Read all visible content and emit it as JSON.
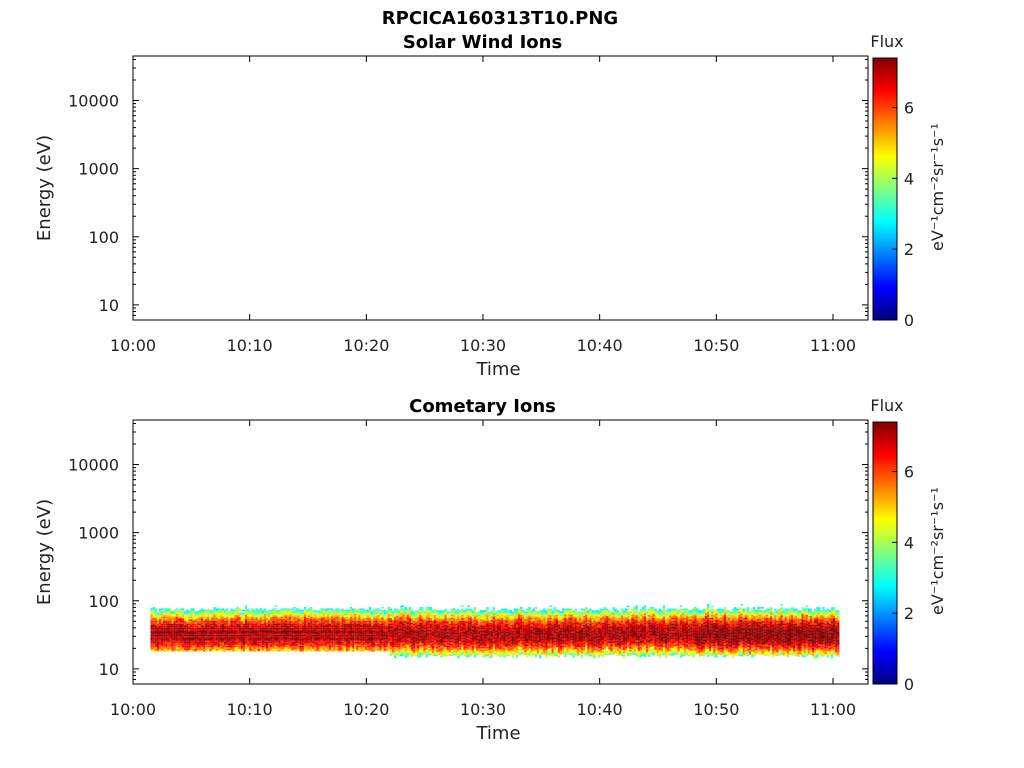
{
  "figure": {
    "title": "RPCICA160313T10.PNG"
  },
  "colormap": [
    "#00007f",
    "#0000ff",
    "#007fff",
    "#00ffff",
    "#7fff7f",
    "#ffff00",
    "#ff7f00",
    "#ff0000",
    "#7f0000"
  ],
  "chart_data": [
    {
      "type": "heatmap",
      "title": "Solar Wind Ions",
      "xlabel": "Time",
      "ylabel": "Energy (eV)",
      "x_ticks": [
        "10:00",
        "10:10",
        "10:20",
        "10:30",
        "10:40",
        "10:50",
        "11:00"
      ],
      "xlim_minutes": [
        0,
        63
      ],
      "y_ticks": [
        10,
        100,
        1000,
        10000
      ],
      "y_tick_labels": [
        "10",
        "100",
        "1000",
        "10000"
      ],
      "ylim": [
        6,
        45000
      ],
      "yscale": "log",
      "colorbar": {
        "label": "Flux",
        "units": "eV⁻¹cm⁻²sr⁻¹s⁻¹",
        "ticks": [
          0,
          2,
          4,
          6
        ],
        "range": [
          0,
          7.4
        ]
      },
      "data": {
        "note_empty": true,
        "bands": []
      }
    },
    {
      "type": "heatmap",
      "title": "Cometary Ions",
      "xlabel": "Time",
      "ylabel": "Energy (eV)",
      "x_ticks": [
        "10:00",
        "10:10",
        "10:20",
        "10:30",
        "10:40",
        "10:50",
        "11:00"
      ],
      "xlim_minutes": [
        0,
        63
      ],
      "y_ticks": [
        10,
        100,
        1000,
        10000
      ],
      "y_tick_labels": [
        "10",
        "100",
        "1000",
        "10000"
      ],
      "ylim": [
        6,
        45000
      ],
      "yscale": "log",
      "colorbar": {
        "label": "Flux",
        "units": "eV⁻¹cm⁻²sr⁻¹s⁻¹",
        "ticks": [
          0,
          2,
          4,
          6
        ],
        "range": [
          0,
          7.4
        ]
      },
      "data": {
        "time_range_minutes": [
          1.5,
          60.5
        ],
        "energy_range_eV": [
          18,
          85
        ],
        "peak_energy_eV": 32,
        "peak_flux": 7.2
      }
    }
  ]
}
